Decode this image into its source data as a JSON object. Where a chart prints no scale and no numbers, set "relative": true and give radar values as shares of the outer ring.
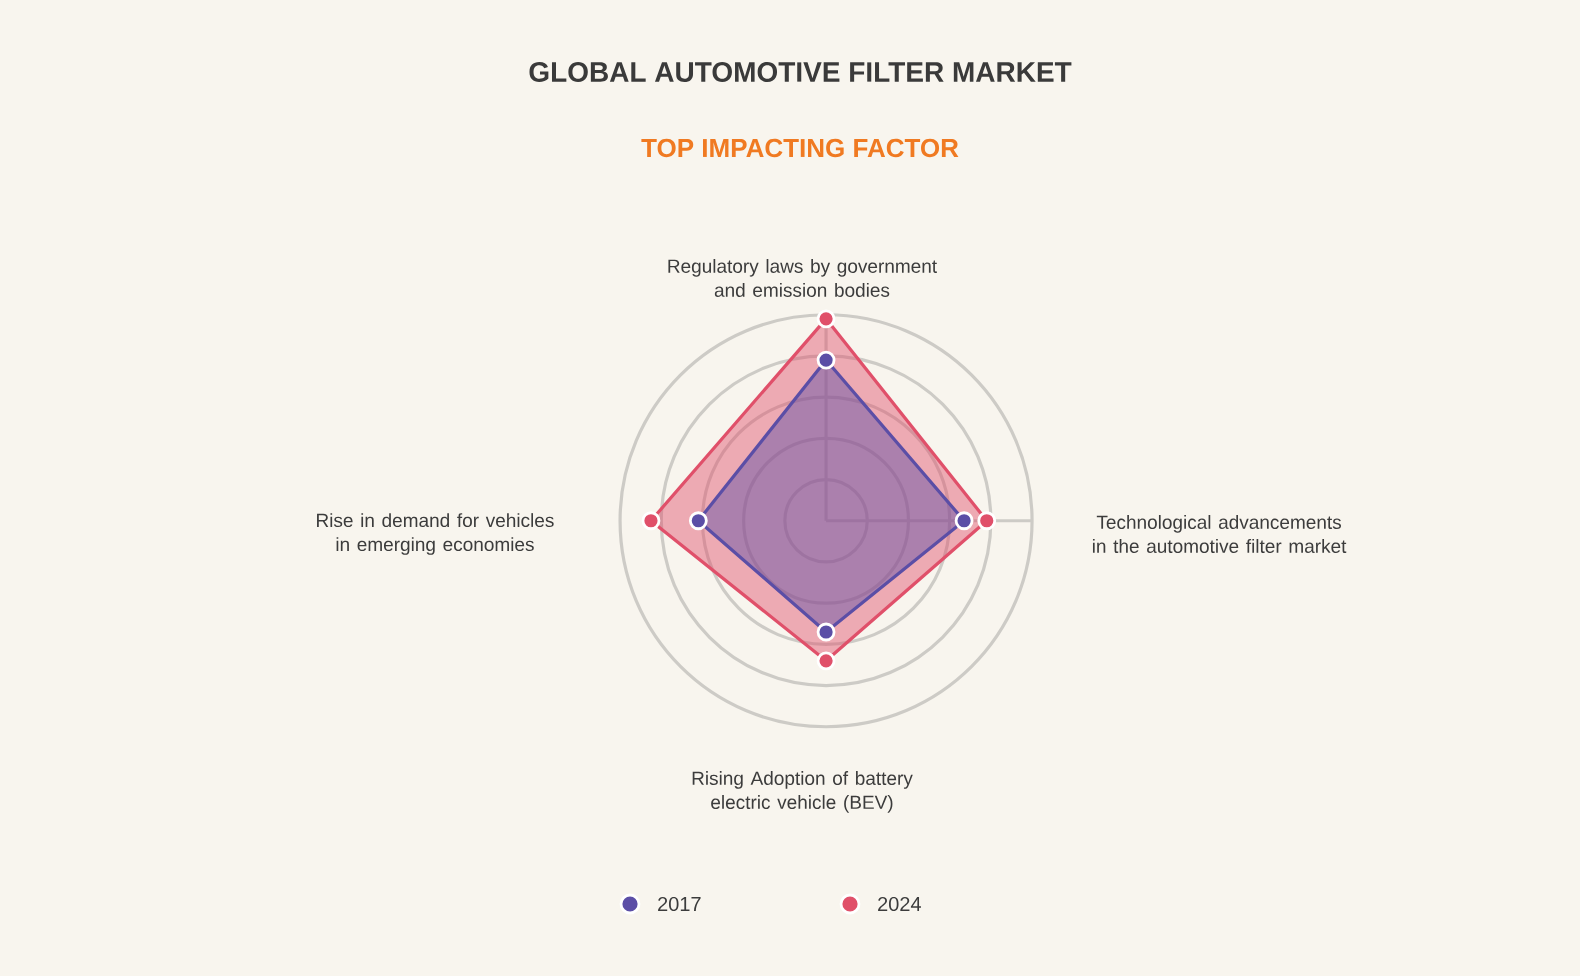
{
  "chart_data": {
    "type": "radar",
    "title": "GLOBAL AUTOMOTIVE FILTER MARKET",
    "subtitle": "TOP IMPACTING FACTOR",
    "categories": [
      "Regulatory laws by government and emission bodies",
      "Technological advancements in the automotive filter market",
      "Rising Adoption of battery electric vehicle (BEV)",
      "Rise in demand for vehicles in emerging economies"
    ],
    "relative": true,
    "grid": true,
    "legend": "bottom",
    "marker": "circle",
    "series": [
      {
        "name": "2024",
        "color": "#e0506a",
        "values": [
          0.98,
          0.78,
          0.68,
          0.85
        ]
      },
      {
        "name": "2017",
        "color": "#5b4ea6",
        "values": [
          0.78,
          0.67,
          0.54,
          0.62
        ]
      }
    ]
  }
}
